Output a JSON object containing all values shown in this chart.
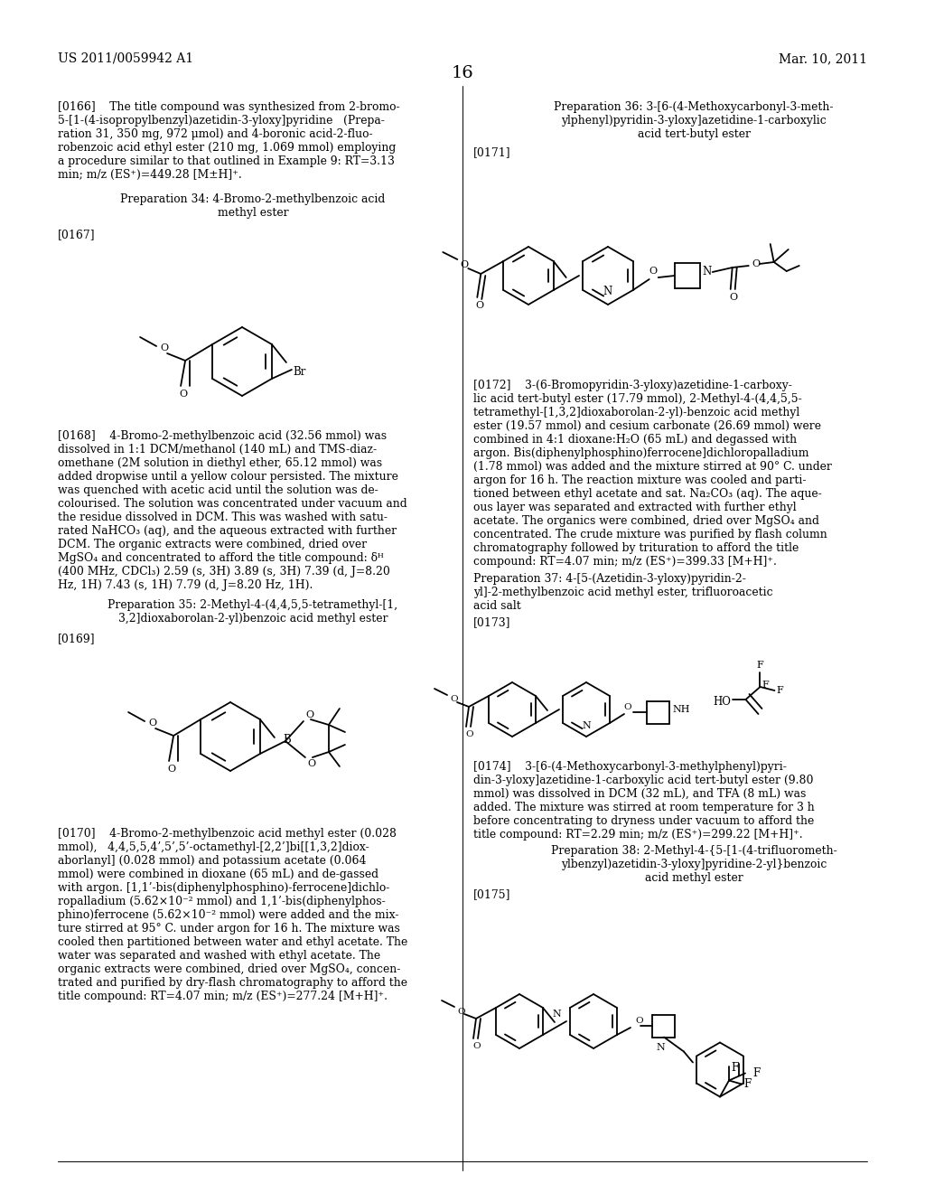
{
  "background_color": "#ffffff",
  "patent_number": "US 2011/0059942 A1",
  "date": "Mar. 10, 2011",
  "page_number": "16"
}
